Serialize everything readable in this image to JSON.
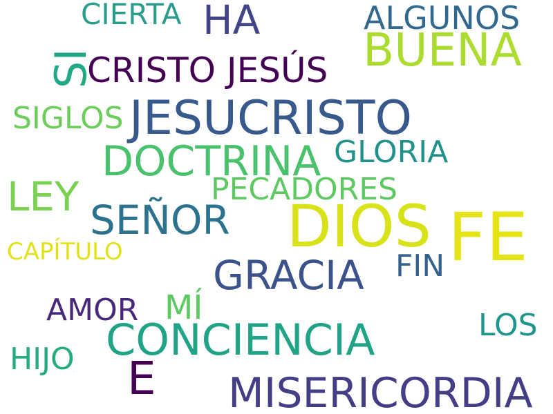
{
  "words": [
    {
      "text": "DIOS",
      "color": "#d8e219"
    },
    {
      "text": "FE",
      "color": "#e5e419"
    },
    {
      "text": "JESUCRISTO",
      "color": "#38598c"
    },
    {
      "text": "MISERICORDIA",
      "color": "#433e85"
    },
    {
      "text": "CONCIENCIA",
      "color": "#20a386"
    },
    {
      "text": "GRACIA",
      "color": "#3b528b"
    },
    {
      "text": "BUENA",
      "color": "#addc30"
    },
    {
      "text": "DOCTRINA",
      "color": "#4ac16d"
    },
    {
      "text": "SEÑOR",
      "color": "#2c728e"
    },
    {
      "text": "CRISTO JESÚS",
      "color": "#440154"
    },
    {
      "text": "LEY",
      "color": "#7ad151"
    },
    {
      "text": "E",
      "color": "#440154"
    },
    {
      "text": "HA",
      "color": "#414487"
    },
    {
      "text": "SI",
      "color": "#22a884"
    },
    {
      "text": "PECADORES",
      "color": "#5ec962"
    },
    {
      "text": "ALGUNOS",
      "color": "#31688e"
    },
    {
      "text": "GLORIA",
      "color": "#21918c"
    },
    {
      "text": "FIN",
      "color": "#355f8d"
    },
    {
      "text": "AMOR",
      "color": "#482878"
    },
    {
      "text": "MÍ",
      "color": "#5ec962"
    },
    {
      "text": "SIGLOS",
      "color": "#6ccd5a"
    },
    {
      "text": "CIERTA",
      "color": "#2a9d8a"
    },
    {
      "text": "LOS",
      "color": "#1f968b"
    },
    {
      "text": "HIJO",
      "color": "#25ab82"
    },
    {
      "text": "CAPÍTULO",
      "color": "#e0e31a"
    }
  ]
}
